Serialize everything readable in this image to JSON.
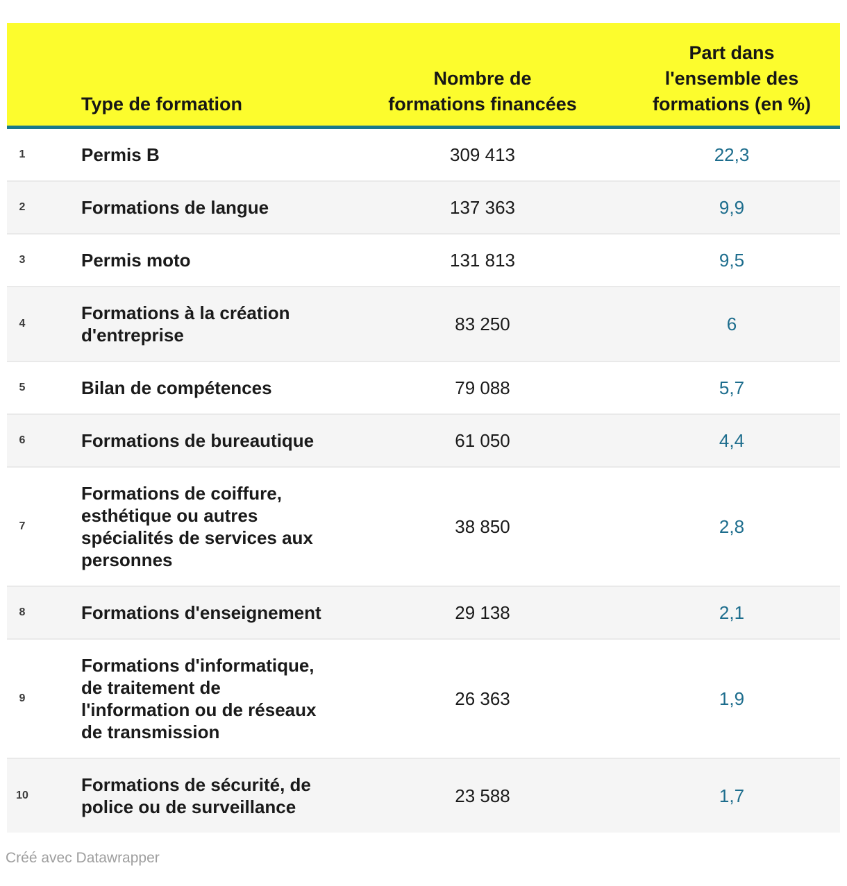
{
  "table": {
    "columns": {
      "rank_header": "",
      "type": "Type de formation",
      "count": "Nombre de\nformations financées",
      "share": "Part dans\nl'ensemble des\nformations (en %)"
    },
    "rows": [
      {
        "rank": "1",
        "type": "Permis B",
        "count": "309 413",
        "share": "22,3"
      },
      {
        "rank": "2",
        "type": "Formations de langue",
        "count": "137 363",
        "share": "9,9"
      },
      {
        "rank": "3",
        "type": "Permis moto",
        "count": "131 813",
        "share": "9,5"
      },
      {
        "rank": "4",
        "type": "Formations à la création\nd'entreprise",
        "count": "83 250",
        "share": "6"
      },
      {
        "rank": "5",
        "type": "Bilan de compétences",
        "count": "79 088",
        "share": "5,7"
      },
      {
        "rank": "6",
        "type": "Formations de bureautique",
        "count": "61 050",
        "share": "4,4"
      },
      {
        "rank": "7",
        "type": "Formations de coiffure,\nesthétique ou autres\nspécialités de services aux\npersonnes",
        "count": "38 850",
        "share": "2,8"
      },
      {
        "rank": "8",
        "type": "Formations d'enseignement",
        "count": "29 138",
        "share": "2,1"
      },
      {
        "rank": "9",
        "type": "Formations d'informatique,\nde traitement de\nl'information ou de réseaux\nde transmission",
        "count": "26 363",
        "share": "1,9"
      },
      {
        "rank": "10",
        "type": "Formations de sécurité, de\npolice ou de surveillance",
        "count": "23 588",
        "share": "1,7"
      }
    ]
  },
  "footer": {
    "credit": "Créé avec Datawrapper"
  },
  "colors": {
    "header_bg": "#fcfc2d",
    "header_rule": "#17788c",
    "share_color": "#1d6d8d",
    "row_alt": "#f5f5f5",
    "text": "#1a1a1a",
    "rank": "#3a3a3a",
    "credit": "#9e9e9e"
  },
  "chart_data": {
    "type": "table",
    "title": "",
    "columns": [
      "Type de formation",
      "Nombre de formations financées",
      "Part dans l'ensemble des formations (en %)"
    ],
    "categories": [
      "Permis B",
      "Formations de langue",
      "Permis moto",
      "Formations à la création d'entreprise",
      "Bilan de compétences",
      "Formations de bureautique",
      "Formations de coiffure, esthétique ou autres spécialités de services aux personnes",
      "Formations d'enseignement",
      "Formations d'informatique, de traitement de l'information ou de réseaux de transmission",
      "Formations de sécurité, de police ou de surveillance"
    ],
    "series": [
      {
        "name": "Nombre de formations financées",
        "values": [
          309413,
          137363,
          131813,
          83250,
          79088,
          61050,
          38850,
          29138,
          26363,
          23588
        ]
      },
      {
        "name": "Part dans l'ensemble des formations (en %)",
        "values": [
          22.3,
          9.9,
          9.5,
          6,
          5.7,
          4.4,
          2.8,
          2.1,
          1.9,
          1.7
        ]
      }
    ],
    "ranks": [
      1,
      2,
      3,
      4,
      5,
      6,
      7,
      8,
      9,
      10
    ]
  }
}
